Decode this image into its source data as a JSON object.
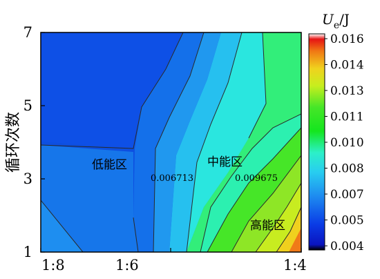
{
  "chart_data": {
    "type": "heatmap",
    "subtype": "filled-contour",
    "xlabel": "",
    "ylabel": "循环次数",
    "x_ticks": [
      "1:8",
      "1:6",
      "1:4"
    ],
    "y_ticks": [
      "1",
      "3",
      "5",
      "7"
    ],
    "ylim": [
      1,
      7
    ],
    "colorbar": {
      "unit_symbol": "U",
      "unit_sub": "e",
      "unit_rest": "/J",
      "range": [
        0.004,
        0.016
      ],
      "tick_labels": [
        "0.016",
        "0.014",
        "0.013",
        "0.011",
        "0.010",
        "0.008",
        "0.007",
        "0.005",
        "0.004"
      ]
    },
    "contour_labels": [
      "0.006713",
      "0.009675"
    ],
    "regions": [
      "低能区",
      "中能区",
      "高能区"
    ],
    "grid": false
  }
}
